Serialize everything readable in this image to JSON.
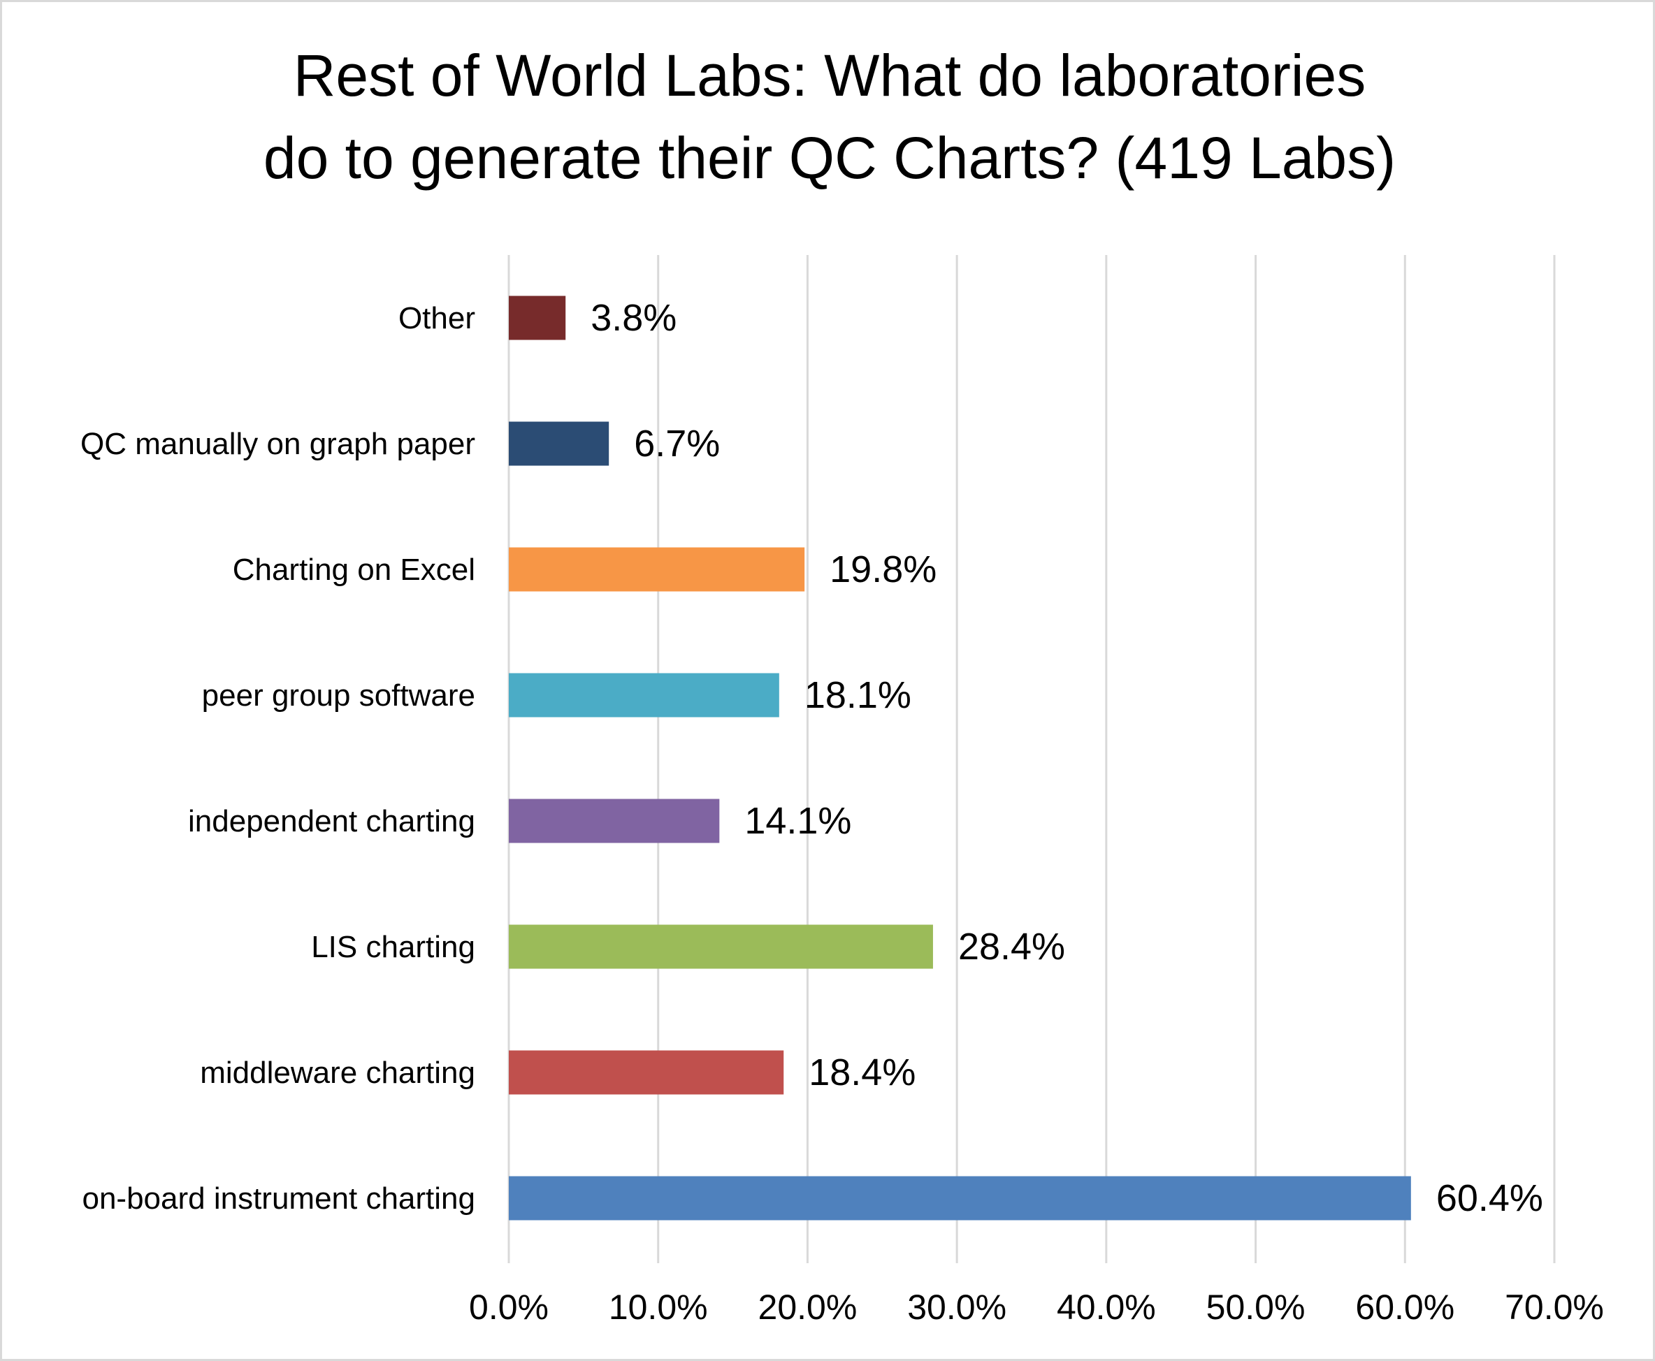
{
  "chart_data": {
    "type": "bar",
    "orientation": "horizontal",
    "title": "Rest of World Labs:  What do laboratories do to generate their QC Charts? (419 Labs)",
    "title_lines": [
      "Rest of World Labs:  What do laboratories",
      "do to generate their QC Charts? (419 Labs)"
    ],
    "categories": [
      "Other",
      "QC manually on graph paper",
      "Charting on Excel",
      "peer group software",
      "independent charting",
      "LIS charting",
      "middleware charting",
      "on-board instrument charting"
    ],
    "values": [
      3.8,
      6.7,
      19.8,
      18.1,
      14.1,
      28.4,
      18.4,
      60.4
    ],
    "data_labels": [
      "3.8%",
      "6.7%",
      "19.8%",
      "18.1%",
      "14.1%",
      "28.4%",
      "18.4%",
      "60.4%"
    ],
    "colors": [
      "#772b2b",
      "#2b4c74",
      "#f79646",
      "#4bacc6",
      "#8064a2",
      "#9bbb59",
      "#c0504d",
      "#4f81bd"
    ],
    "xlim": [
      0,
      70
    ],
    "xticks": [
      0,
      10,
      20,
      30,
      40,
      50,
      60,
      70
    ],
    "xtick_labels": [
      "0.0%",
      "10.0%",
      "20.0%",
      "30.0%",
      "40.0%",
      "50.0%",
      "60.0%",
      "70.0%"
    ],
    "xlabel": "",
    "ylabel": "",
    "grid": "vertical",
    "legend": "none",
    "gridline_color": "#d9d9d9"
  }
}
